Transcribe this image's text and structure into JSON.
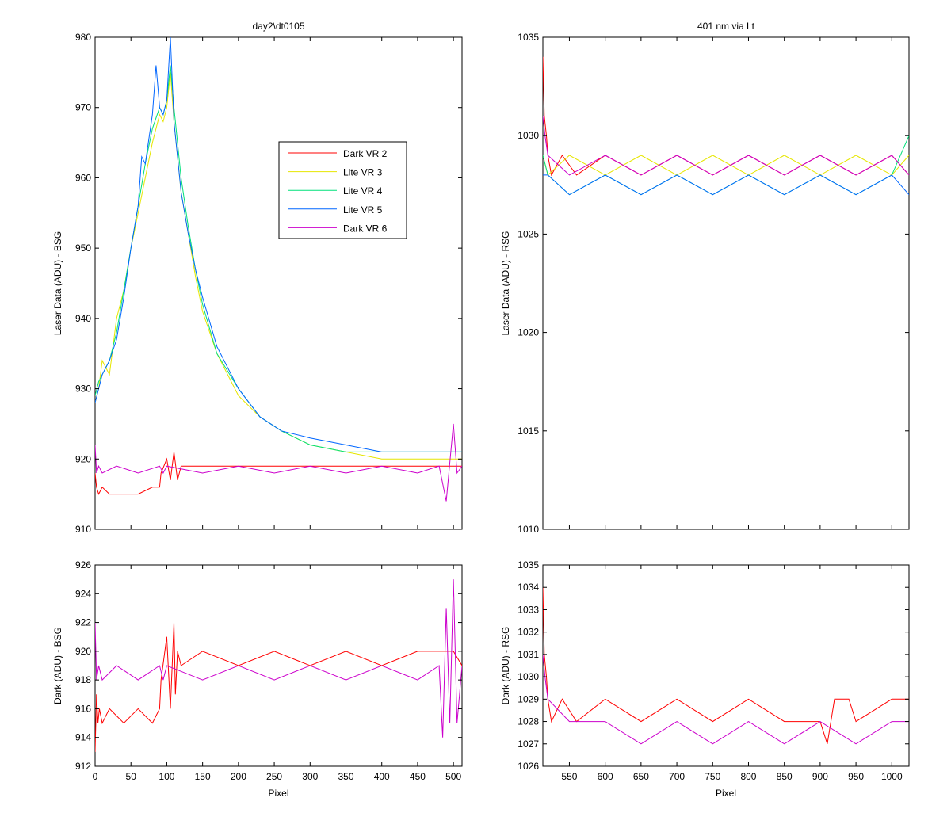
{
  "chart_data": [
    {
      "id": "tl",
      "type": "line",
      "title": "day2\\dt0105",
      "xlabel": "",
      "ylabel": "Laser Data (ADU) - BSG",
      "xlim": [
        0,
        512
      ],
      "ylim": [
        910,
        980
      ],
      "xticks": [
        0,
        50,
        100,
        150,
        200,
        250,
        300,
        350,
        400,
        450,
        500
      ],
      "yticks": [
        910,
        920,
        930,
        940,
        950,
        960,
        970,
        980
      ],
      "show_xtick_labels": false,
      "legend": {
        "position": "upper-middle"
      },
      "series": [
        {
          "name": "Dark VR 2",
          "color": "#ff0000",
          "x": [
            0,
            2,
            5,
            10,
            20,
            40,
            60,
            80,
            90,
            92,
            100,
            105,
            110,
            115,
            120,
            150,
            200,
            250,
            300,
            350,
            400,
            450,
            500,
            512
          ],
          "y": [
            918,
            916,
            915,
            916,
            915,
            915,
            915,
            916,
            916,
            918,
            920,
            917,
            921,
            917,
            919,
            919,
            919,
            919,
            919,
            919,
            919,
            919,
            919,
            919
          ]
        },
        {
          "name": "Lite VR 3",
          "color": "#e6e600",
          "x": [
            0,
            5,
            10,
            20,
            30,
            40,
            50,
            60,
            70,
            80,
            90,
            95,
            100,
            105,
            110,
            120,
            130,
            140,
            150,
            170,
            200,
            230,
            260,
            300,
            350,
            400,
            450,
            500,
            512
          ],
          "y": [
            928,
            930,
            934,
            932,
            940,
            944,
            950,
            955,
            960,
            965,
            969,
            968,
            970,
            975,
            968,
            958,
            952,
            946,
            941,
            935,
            929,
            926,
            924,
            922,
            921,
            920,
            920,
            920,
            920
          ]
        },
        {
          "name": "Lite VR 4",
          "color": "#00e07a",
          "x": [
            0,
            5,
            10,
            20,
            30,
            40,
            50,
            60,
            70,
            80,
            90,
            95,
            100,
            105,
            110,
            120,
            130,
            140,
            150,
            170,
            200,
            230,
            260,
            300,
            350,
            400,
            450,
            500,
            512
          ],
          "y": [
            929,
            931,
            932,
            934,
            938,
            944,
            950,
            956,
            962,
            967,
            970,
            969,
            971,
            976,
            970,
            960,
            953,
            947,
            942,
            935,
            930,
            926,
            924,
            922,
            921,
            921,
            921,
            921,
            921
          ]
        },
        {
          "name": "Lite VR 5",
          "color": "#0066ff",
          "x": [
            0,
            5,
            10,
            20,
            30,
            40,
            50,
            60,
            65,
            70,
            80,
            85,
            90,
            95,
            100,
            105,
            110,
            120,
            130,
            140,
            150,
            170,
            200,
            230,
            260,
            300,
            350,
            400,
            450,
            500,
            512
          ],
          "y": [
            928,
            930,
            932,
            934,
            937,
            943,
            950,
            956,
            963,
            962,
            969,
            976,
            970,
            969,
            971,
            980,
            968,
            958,
            952,
            947,
            943,
            936,
            930,
            926,
            924,
            923,
            922,
            921,
            921,
            921,
            921
          ]
        },
        {
          "name": "Dark VR 6",
          "color": "#cc00cc",
          "x": [
            0,
            2,
            5,
            10,
            30,
            60,
            90,
            95,
            100,
            150,
            200,
            250,
            300,
            350,
            400,
            450,
            480,
            490,
            500,
            505,
            512
          ],
          "y": [
            922,
            918,
            919,
            918,
            919,
            918,
            919,
            918,
            919,
            918,
            919,
            918,
            919,
            918,
            919,
            918,
            919,
            914,
            925,
            918,
            919
          ]
        }
      ]
    },
    {
      "id": "tr",
      "type": "line",
      "title": "401 nm via Lt",
      "xlabel": "",
      "ylabel": "Laser Data (ADU) - RSG",
      "xlim": [
        513,
        1024
      ],
      "ylim": [
        1010,
        1035
      ],
      "xticks": [
        550,
        600,
        650,
        700,
        750,
        800,
        850,
        900,
        950,
        1000
      ],
      "yticks": [
        1010,
        1015,
        1020,
        1025,
        1030,
        1035
      ],
      "show_xtick_labels": false,
      "series": [
        {
          "name": "Dark VR 2",
          "color": "#ff0000",
          "x": [
            513,
            515,
            518,
            520,
            525,
            540,
            560,
            600,
            650,
            700,
            750,
            800,
            850,
            900,
            950,
            1000,
            1024
          ],
          "y": [
            1034,
            1031,
            1030,
            1029,
            1028,
            1029,
            1028,
            1029,
            1028,
            1029,
            1028,
            1029,
            1028,
            1029,
            1028,
            1029,
            1028
          ]
        },
        {
          "name": "Lite VR 3",
          "color": "#e6e600",
          "x": [
            513,
            520,
            550,
            600,
            650,
            700,
            750,
            800,
            850,
            900,
            950,
            1000,
            1024
          ],
          "y": [
            1029,
            1028,
            1029,
            1028,
            1029,
            1028,
            1029,
            1028,
            1029,
            1028,
            1029,
            1028,
            1029
          ]
        },
        {
          "name": "Lite VR 4",
          "color": "#00e07a",
          "x": [
            513,
            520,
            550,
            600,
            650,
            700,
            750,
            800,
            850,
            900,
            950,
            1000,
            1024
          ],
          "y": [
            1029,
            1028,
            1027,
            1028,
            1027,
            1028,
            1027,
            1028,
            1027,
            1028,
            1027,
            1028,
            1030
          ]
        },
        {
          "name": "Lite VR 5",
          "color": "#0066ff",
          "x": [
            513,
            520,
            550,
            600,
            650,
            700,
            750,
            800,
            850,
            900,
            950,
            1000,
            1024
          ],
          "y": [
            1028,
            1028,
            1027,
            1028,
            1027,
            1028,
            1027,
            1028,
            1027,
            1028,
            1027,
            1028,
            1027
          ]
        },
        {
          "name": "Dark VR 6",
          "color": "#cc00cc",
          "x": [
            513,
            516,
            520,
            550,
            600,
            650,
            700,
            750,
            800,
            850,
            900,
            950,
            1000,
            1024
          ],
          "y": [
            1031,
            1030,
            1029,
            1028,
            1029,
            1028,
            1029,
            1028,
            1029,
            1028,
            1029,
            1028,
            1029,
            1028
          ]
        }
      ]
    },
    {
      "id": "bl",
      "type": "line",
      "title": "",
      "xlabel": "Pixel",
      "ylabel": "Dark (ADU) - BSG",
      "xlim": [
        0,
        512
      ],
      "ylim": [
        912,
        926
      ],
      "xticks": [
        0,
        50,
        100,
        150,
        200,
        250,
        300,
        350,
        400,
        450,
        500
      ],
      "yticks": [
        912,
        914,
        916,
        918,
        920,
        922,
        924,
        926
      ],
      "show_xtick_labels": true,
      "series": [
        {
          "name": "Dark VR 2",
          "color": "#ff0000",
          "x": [
            0,
            2,
            4,
            6,
            10,
            20,
            40,
            60,
            80,
            90,
            92,
            100,
            105,
            110,
            112,
            115,
            120,
            150,
            200,
            250,
            300,
            350,
            400,
            450,
            500,
            512
          ],
          "y": [
            913,
            917,
            915,
            916,
            915,
            916,
            915,
            916,
            915,
            916,
            918,
            921,
            916,
            922,
            917,
            920,
            919,
            920,
            919,
            920,
            919,
            920,
            919,
            920,
            920,
            919
          ]
        },
        {
          "name": "Dark VR 6",
          "color": "#cc00cc",
          "x": [
            0,
            2,
            5,
            10,
            30,
            60,
            90,
            95,
            100,
            150,
            200,
            250,
            300,
            350,
            400,
            450,
            480,
            485,
            490,
            495,
            500,
            505,
            512
          ],
          "y": [
            922,
            918,
            919,
            918,
            919,
            918,
            919,
            918,
            919,
            918,
            919,
            918,
            919,
            918,
            919,
            918,
            919,
            914,
            923,
            915,
            925,
            915,
            919
          ]
        }
      ]
    },
    {
      "id": "br",
      "type": "line",
      "title": "",
      "xlabel": "Pixel",
      "ylabel": "Dark (ADU) - RSG",
      "xlim": [
        513,
        1024
      ],
      "ylim": [
        1026,
        1035
      ],
      "xticks": [
        550,
        600,
        650,
        700,
        750,
        800,
        850,
        900,
        950,
        1000
      ],
      "yticks": [
        1026,
        1027,
        1028,
        1029,
        1030,
        1031,
        1032,
        1033,
        1034,
        1035
      ],
      "show_xtick_labels": true,
      "series": [
        {
          "name": "Dark VR 2",
          "color": "#ff0000",
          "x": [
            513,
            515,
            518,
            520,
            525,
            540,
            560,
            600,
            650,
            700,
            750,
            800,
            850,
            900,
            910,
            920,
            940,
            950,
            1000,
            1024
          ],
          "y": [
            1034,
            1031,
            1030,
            1029,
            1028,
            1029,
            1028,
            1029,
            1028,
            1029,
            1028,
            1029,
            1028,
            1028,
            1027,
            1029,
            1029,
            1028,
            1029,
            1029
          ]
        },
        {
          "name": "Dark VR 6",
          "color": "#cc00cc",
          "x": [
            513,
            516,
            520,
            550,
            600,
            650,
            700,
            750,
            800,
            850,
            900,
            950,
            1000,
            1024
          ],
          "y": [
            1031,
            1030,
            1029,
            1028,
            1028,
            1027,
            1028,
            1027,
            1028,
            1027,
            1028,
            1027,
            1028,
            1028
          ]
        }
      ]
    }
  ]
}
